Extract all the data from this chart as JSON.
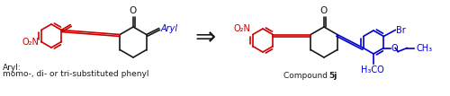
{
  "bg_color": "#ffffff",
  "fig_width": 5.0,
  "fig_height": 1.07,
  "dpi": 100,
  "arrow_text": "⇒",
  "label_aryl": "Aryl:",
  "label_sub": "momo-, di- or tri-substituted phenyl",
  "label_compound": "Compound ",
  "label_compound_bold": "5j",
  "colors": {
    "red": "#cc0000",
    "black": "#1a1a1a",
    "blue": "#0000cc"
  },
  "font_size_main": 7.0,
  "font_size_small": 6.5,
  "font_size_arrow": 16,
  "lw": 1.2,
  "r_ring": 13,
  "r_hex": 16
}
